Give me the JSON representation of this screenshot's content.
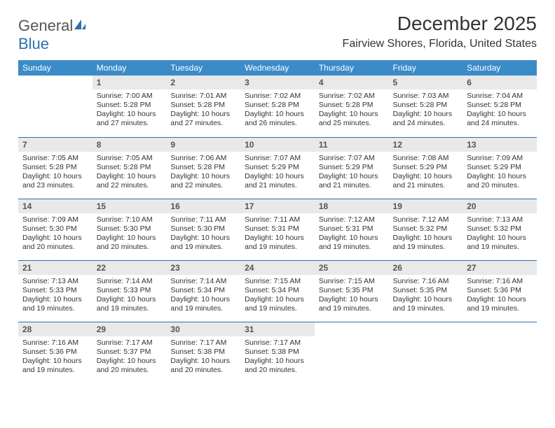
{
  "brand": {
    "text_general": "General",
    "text_blue": "Blue"
  },
  "header": {
    "month_title": "December 2025",
    "location": "Fairview Shores, Florida, United States"
  },
  "colors": {
    "header_bg": "#3b8bc9",
    "header_text": "#ffffff",
    "row_divider": "#2f6fae",
    "daynum_bg": "#e9e9e9",
    "daynum_text": "#555555",
    "body_text": "#333333",
    "page_bg": "#ffffff",
    "logo_blue": "#2f6fae",
    "logo_gray": "#555555"
  },
  "weekdays": [
    "Sunday",
    "Monday",
    "Tuesday",
    "Wednesday",
    "Thursday",
    "Friday",
    "Saturday"
  ],
  "weeks": [
    [
      {
        "empty": true
      },
      {
        "day": "1",
        "sunrise": "Sunrise: 7:00 AM",
        "sunset": "Sunset: 5:28 PM",
        "daylight": "Daylight: 10 hours and 27 minutes."
      },
      {
        "day": "2",
        "sunrise": "Sunrise: 7:01 AM",
        "sunset": "Sunset: 5:28 PM",
        "daylight": "Daylight: 10 hours and 27 minutes."
      },
      {
        "day": "3",
        "sunrise": "Sunrise: 7:02 AM",
        "sunset": "Sunset: 5:28 PM",
        "daylight": "Daylight: 10 hours and 26 minutes."
      },
      {
        "day": "4",
        "sunrise": "Sunrise: 7:02 AM",
        "sunset": "Sunset: 5:28 PM",
        "daylight": "Daylight: 10 hours and 25 minutes."
      },
      {
        "day": "5",
        "sunrise": "Sunrise: 7:03 AM",
        "sunset": "Sunset: 5:28 PM",
        "daylight": "Daylight: 10 hours and 24 minutes."
      },
      {
        "day": "6",
        "sunrise": "Sunrise: 7:04 AM",
        "sunset": "Sunset: 5:28 PM",
        "daylight": "Daylight: 10 hours and 24 minutes."
      }
    ],
    [
      {
        "day": "7",
        "sunrise": "Sunrise: 7:05 AM",
        "sunset": "Sunset: 5:28 PM",
        "daylight": "Daylight: 10 hours and 23 minutes."
      },
      {
        "day": "8",
        "sunrise": "Sunrise: 7:05 AM",
        "sunset": "Sunset: 5:28 PM",
        "daylight": "Daylight: 10 hours and 22 minutes."
      },
      {
        "day": "9",
        "sunrise": "Sunrise: 7:06 AM",
        "sunset": "Sunset: 5:28 PM",
        "daylight": "Daylight: 10 hours and 22 minutes."
      },
      {
        "day": "10",
        "sunrise": "Sunrise: 7:07 AM",
        "sunset": "Sunset: 5:29 PM",
        "daylight": "Daylight: 10 hours and 21 minutes."
      },
      {
        "day": "11",
        "sunrise": "Sunrise: 7:07 AM",
        "sunset": "Sunset: 5:29 PM",
        "daylight": "Daylight: 10 hours and 21 minutes."
      },
      {
        "day": "12",
        "sunrise": "Sunrise: 7:08 AM",
        "sunset": "Sunset: 5:29 PM",
        "daylight": "Daylight: 10 hours and 21 minutes."
      },
      {
        "day": "13",
        "sunrise": "Sunrise: 7:09 AM",
        "sunset": "Sunset: 5:29 PM",
        "daylight": "Daylight: 10 hours and 20 minutes."
      }
    ],
    [
      {
        "day": "14",
        "sunrise": "Sunrise: 7:09 AM",
        "sunset": "Sunset: 5:30 PM",
        "daylight": "Daylight: 10 hours and 20 minutes."
      },
      {
        "day": "15",
        "sunrise": "Sunrise: 7:10 AM",
        "sunset": "Sunset: 5:30 PM",
        "daylight": "Daylight: 10 hours and 20 minutes."
      },
      {
        "day": "16",
        "sunrise": "Sunrise: 7:11 AM",
        "sunset": "Sunset: 5:30 PM",
        "daylight": "Daylight: 10 hours and 19 minutes."
      },
      {
        "day": "17",
        "sunrise": "Sunrise: 7:11 AM",
        "sunset": "Sunset: 5:31 PM",
        "daylight": "Daylight: 10 hours and 19 minutes."
      },
      {
        "day": "18",
        "sunrise": "Sunrise: 7:12 AM",
        "sunset": "Sunset: 5:31 PM",
        "daylight": "Daylight: 10 hours and 19 minutes."
      },
      {
        "day": "19",
        "sunrise": "Sunrise: 7:12 AM",
        "sunset": "Sunset: 5:32 PM",
        "daylight": "Daylight: 10 hours and 19 minutes."
      },
      {
        "day": "20",
        "sunrise": "Sunrise: 7:13 AM",
        "sunset": "Sunset: 5:32 PM",
        "daylight": "Daylight: 10 hours and 19 minutes."
      }
    ],
    [
      {
        "day": "21",
        "sunrise": "Sunrise: 7:13 AM",
        "sunset": "Sunset: 5:33 PM",
        "daylight": "Daylight: 10 hours and 19 minutes."
      },
      {
        "day": "22",
        "sunrise": "Sunrise: 7:14 AM",
        "sunset": "Sunset: 5:33 PM",
        "daylight": "Daylight: 10 hours and 19 minutes."
      },
      {
        "day": "23",
        "sunrise": "Sunrise: 7:14 AM",
        "sunset": "Sunset: 5:34 PM",
        "daylight": "Daylight: 10 hours and 19 minutes."
      },
      {
        "day": "24",
        "sunrise": "Sunrise: 7:15 AM",
        "sunset": "Sunset: 5:34 PM",
        "daylight": "Daylight: 10 hours and 19 minutes."
      },
      {
        "day": "25",
        "sunrise": "Sunrise: 7:15 AM",
        "sunset": "Sunset: 5:35 PM",
        "daylight": "Daylight: 10 hours and 19 minutes."
      },
      {
        "day": "26",
        "sunrise": "Sunrise: 7:16 AM",
        "sunset": "Sunset: 5:35 PM",
        "daylight": "Daylight: 10 hours and 19 minutes."
      },
      {
        "day": "27",
        "sunrise": "Sunrise: 7:16 AM",
        "sunset": "Sunset: 5:36 PM",
        "daylight": "Daylight: 10 hours and 19 minutes."
      }
    ],
    [
      {
        "day": "28",
        "sunrise": "Sunrise: 7:16 AM",
        "sunset": "Sunset: 5:36 PM",
        "daylight": "Daylight: 10 hours and 19 minutes."
      },
      {
        "day": "29",
        "sunrise": "Sunrise: 7:17 AM",
        "sunset": "Sunset: 5:37 PM",
        "daylight": "Daylight: 10 hours and 20 minutes."
      },
      {
        "day": "30",
        "sunrise": "Sunrise: 7:17 AM",
        "sunset": "Sunset: 5:38 PM",
        "daylight": "Daylight: 10 hours and 20 minutes."
      },
      {
        "day": "31",
        "sunrise": "Sunrise: 7:17 AM",
        "sunset": "Sunset: 5:38 PM",
        "daylight": "Daylight: 10 hours and 20 minutes."
      },
      {
        "empty": true
      },
      {
        "empty": true
      },
      {
        "empty": true
      }
    ]
  ]
}
